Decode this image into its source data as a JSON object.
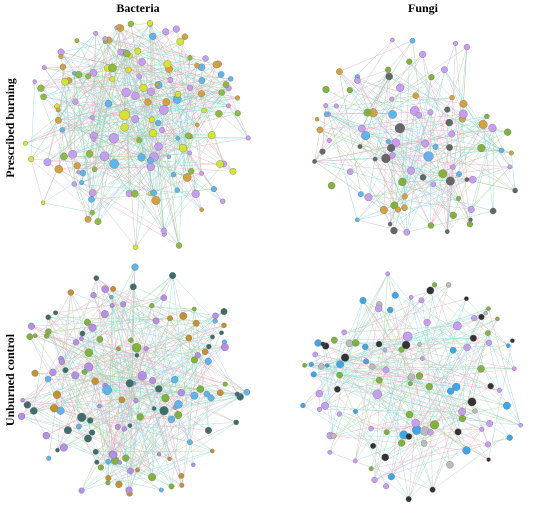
{
  "columns": [
    "Bacteria",
    "Fungi"
  ],
  "rows": [
    "Prescribed burning",
    "Unburned control"
  ]
}
